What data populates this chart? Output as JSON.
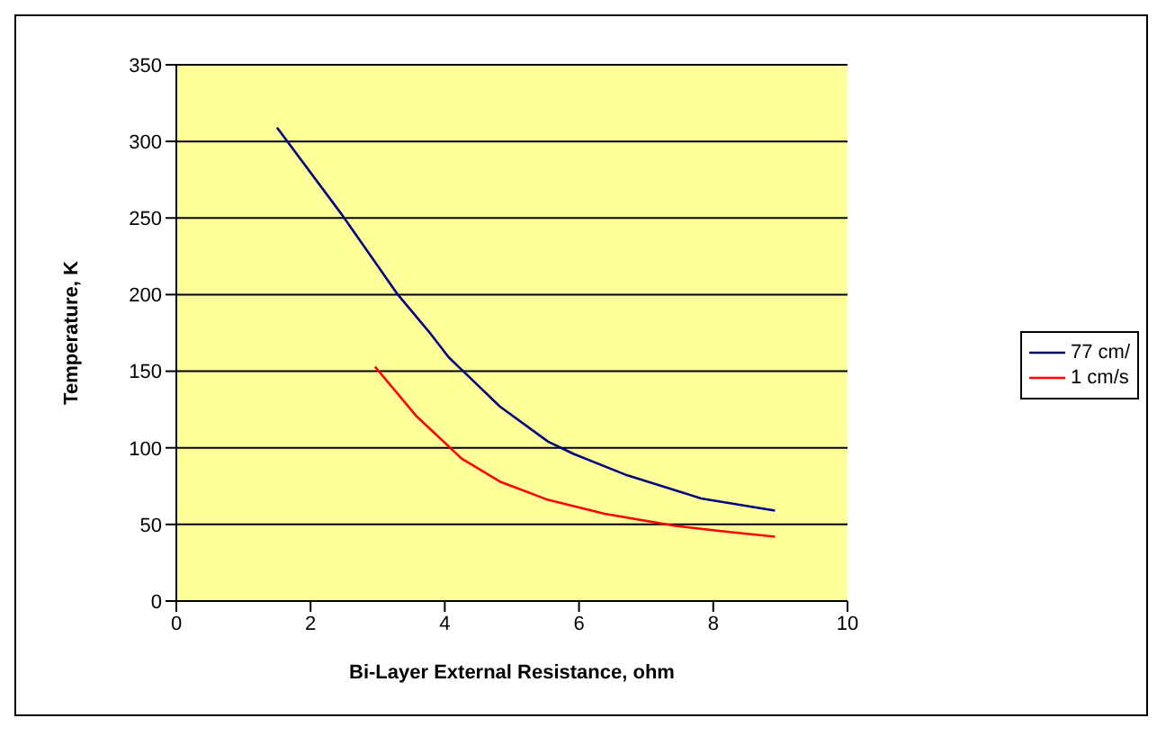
{
  "chart_data": {
    "type": "line",
    "xlabel": "Bi-Layer External Resistance, ohm",
    "ylabel": "Temperature, K",
    "xlim": [
      0,
      10
    ],
    "xticks": [
      0,
      2,
      4,
      6,
      8,
      10
    ],
    "ylim": [
      0,
      350
    ],
    "yticks": [
      0,
      50,
      100,
      150,
      200,
      250,
      300,
      350
    ],
    "grid": "y",
    "legend": "right",
    "marker": "none",
    "line_style": "solid",
    "series": [
      {
        "name": "77 cm/",
        "color": "#000080",
        "x": [
          1.5,
          2.47,
          3.3,
          3.76,
          4.06,
          4.37,
          4.82,
          5.54,
          5.92,
          6.72,
          7.82,
          8.92
        ],
        "values": [
          309,
          252,
          200,
          176,
          159,
          146,
          127,
          104,
          96,
          82,
          67,
          59
        ]
      },
      {
        "name": "1 cm/s",
        "color": "#ff0000",
        "x": [
          2.96,
          3.57,
          4.25,
          4.82,
          5.54,
          6.38,
          7.44,
          8.05,
          8.92
        ],
        "values": [
          153,
          121,
          93,
          78,
          66,
          57,
          49,
          46,
          42
        ]
      }
    ]
  }
}
